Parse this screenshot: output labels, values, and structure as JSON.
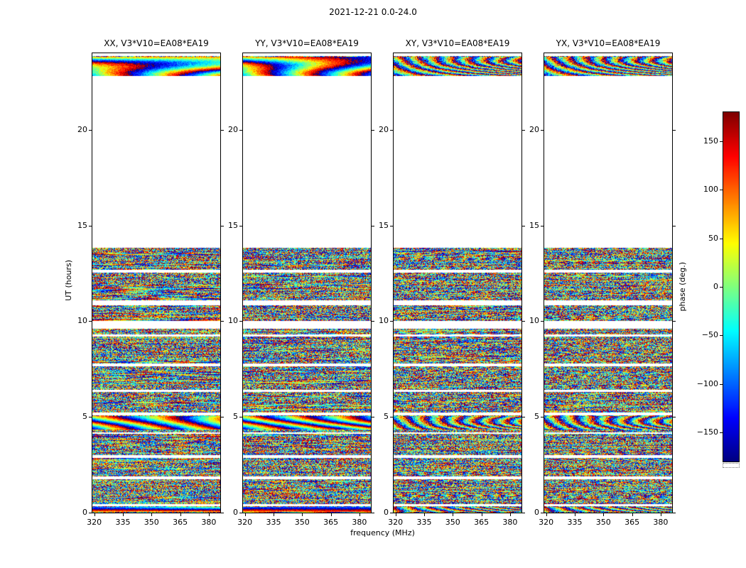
{
  "chart_data": {
    "type": "heatmap",
    "title": "2021-12-21 0.0-24.0",
    "xlabel": "frequency (MHz)",
    "ylabel": "UT (hours)",
    "value_label": "phase (deg.)",
    "colormap": "jet",
    "value_range": [
      -180,
      180
    ],
    "x_range": [
      319,
      386
    ],
    "y_range": [
      0,
      24
    ],
    "x_ticks": [
      320,
      335,
      350,
      365,
      380
    ],
    "y_ticks": [
      0,
      5,
      10,
      15,
      20
    ],
    "colorbar_ticks": [
      150,
      100,
      50,
      0,
      -50,
      -100,
      -150
    ],
    "colorbar_tick_labels": [
      "150",
      "100",
      "50",
      "0",
      "−50",
      "−100",
      "−150"
    ],
    "panels": [
      {
        "title": "XX, V3*V10=EA08*EA19",
        "pol": "XX",
        "smooth_structure": true,
        "seed": 11
      },
      {
        "title": "YY, V3*V10=EA08*EA19",
        "pol": "YY",
        "smooth_structure": true,
        "seed": 23
      },
      {
        "title": "XY, V3*V10=EA08*EA19",
        "pol": "XY",
        "smooth_structure": false,
        "seed": 37
      },
      {
        "title": "YX, V3*V10=EA08*EA19",
        "pol": "YX",
        "smooth_structure": false,
        "seed": 51
      }
    ],
    "time_segments_hours": [
      [
        0.0,
        0.33
      ],
      [
        0.45,
        1.75
      ],
      [
        1.9,
        2.85
      ],
      [
        3.0,
        4.12
      ],
      [
        4.2,
        5.1
      ],
      [
        5.22,
        6.3
      ],
      [
        6.42,
        7.65
      ],
      [
        7.78,
        9.2
      ],
      [
        9.32,
        9.6
      ],
      [
        10.0,
        10.85
      ],
      [
        11.1,
        12.55
      ],
      [
        12.68,
        13.85
      ],
      [
        22.82,
        23.85
      ]
    ],
    "smooth_phase_bands_hours": [
      [
        0.05,
        0.33
      ],
      [
        4.35,
        5.08
      ],
      [
        22.82,
        23.85
      ]
    ],
    "description": "Interferometric visibility phase (deg.) versus frequency and UT for baseline V3*V10=EA08*EA19, shown for four polarization products (XX, YY, XY, YX); white rows contain no data."
  }
}
